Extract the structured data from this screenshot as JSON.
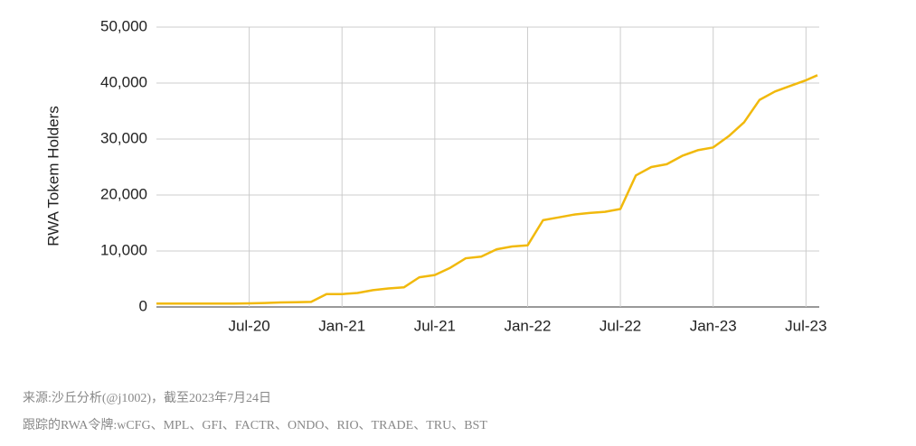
{
  "chart_data": {
    "type": "line",
    "y_label": "RWA Tokem Holders",
    "x": [
      "2020-01",
      "2020-02",
      "2020-03",
      "2020-04",
      "2020-05",
      "2020-06",
      "2020-07",
      "2020-08",
      "2020-09",
      "2020-10",
      "2020-11",
      "2020-12",
      "2021-01",
      "2021-02",
      "2021-03",
      "2021-04",
      "2021-05",
      "2021-06",
      "2021-07",
      "2021-08",
      "2021-09",
      "2021-10",
      "2021-11",
      "2021-12",
      "2022-01",
      "2022-02",
      "2022-03",
      "2022-04",
      "2022-05",
      "2022-06",
      "2022-07",
      "2022-08",
      "2022-09",
      "2022-10",
      "2022-11",
      "2022-12",
      "2023-01",
      "2023-02",
      "2023-03",
      "2023-04",
      "2023-05",
      "2023-06",
      "2023-07",
      "2023-07-24"
    ],
    "series": [
      {
        "name": "RWA Tokem Holders",
        "color": "#f1b90c",
        "values": [
          600,
          600,
          600,
          600,
          600,
          600,
          650,
          700,
          800,
          850,
          900,
          2300,
          2300,
          2500,
          3000,
          3300,
          3500,
          5300,
          5700,
          7000,
          8700,
          9000,
          10300,
          10800,
          11000,
          15500,
          16000,
          16500,
          16800,
          17000,
          17500,
          23500,
          25000,
          25500,
          27000,
          28000,
          28500,
          30500,
          33000,
          37000,
          38500,
          39500,
          40500,
          41400
        ]
      }
    ],
    "xlim": [
      "2020-01",
      "2023-07-24"
    ],
    "xticks": [
      {
        "value": "2020-07",
        "label": "Jul-20"
      },
      {
        "value": "2021-01",
        "label": "Jan-21"
      },
      {
        "value": "2021-07",
        "label": "Jul-21"
      },
      {
        "value": "2022-01",
        "label": "Jan-22"
      },
      {
        "value": "2022-07",
        "label": "Jul-22"
      },
      {
        "value": "2023-01",
        "label": "Jan-23"
      },
      {
        "value": "2023-07",
        "label": "Jul-23"
      }
    ],
    "ylim": [
      0,
      50000
    ],
    "yticks": [
      0,
      {
        "value": 10000,
        "label": "10,000"
      },
      {
        "value": 20000,
        "label": "20,000"
      },
      {
        "value": 30000,
        "label": "30,000"
      },
      {
        "value": 40000,
        "label": "40,000"
      },
      {
        "value": 50000,
        "label": "50,000"
      }
    ],
    "grid": true
  },
  "notes": [
    "来源:沙丘分析(@j1002)，截至2023年7月24日",
    "跟踪的RWA令牌:wCFG、MPL、GFI、FACTR、ONDO、RIO、TRADE、TRU、BST"
  ]
}
